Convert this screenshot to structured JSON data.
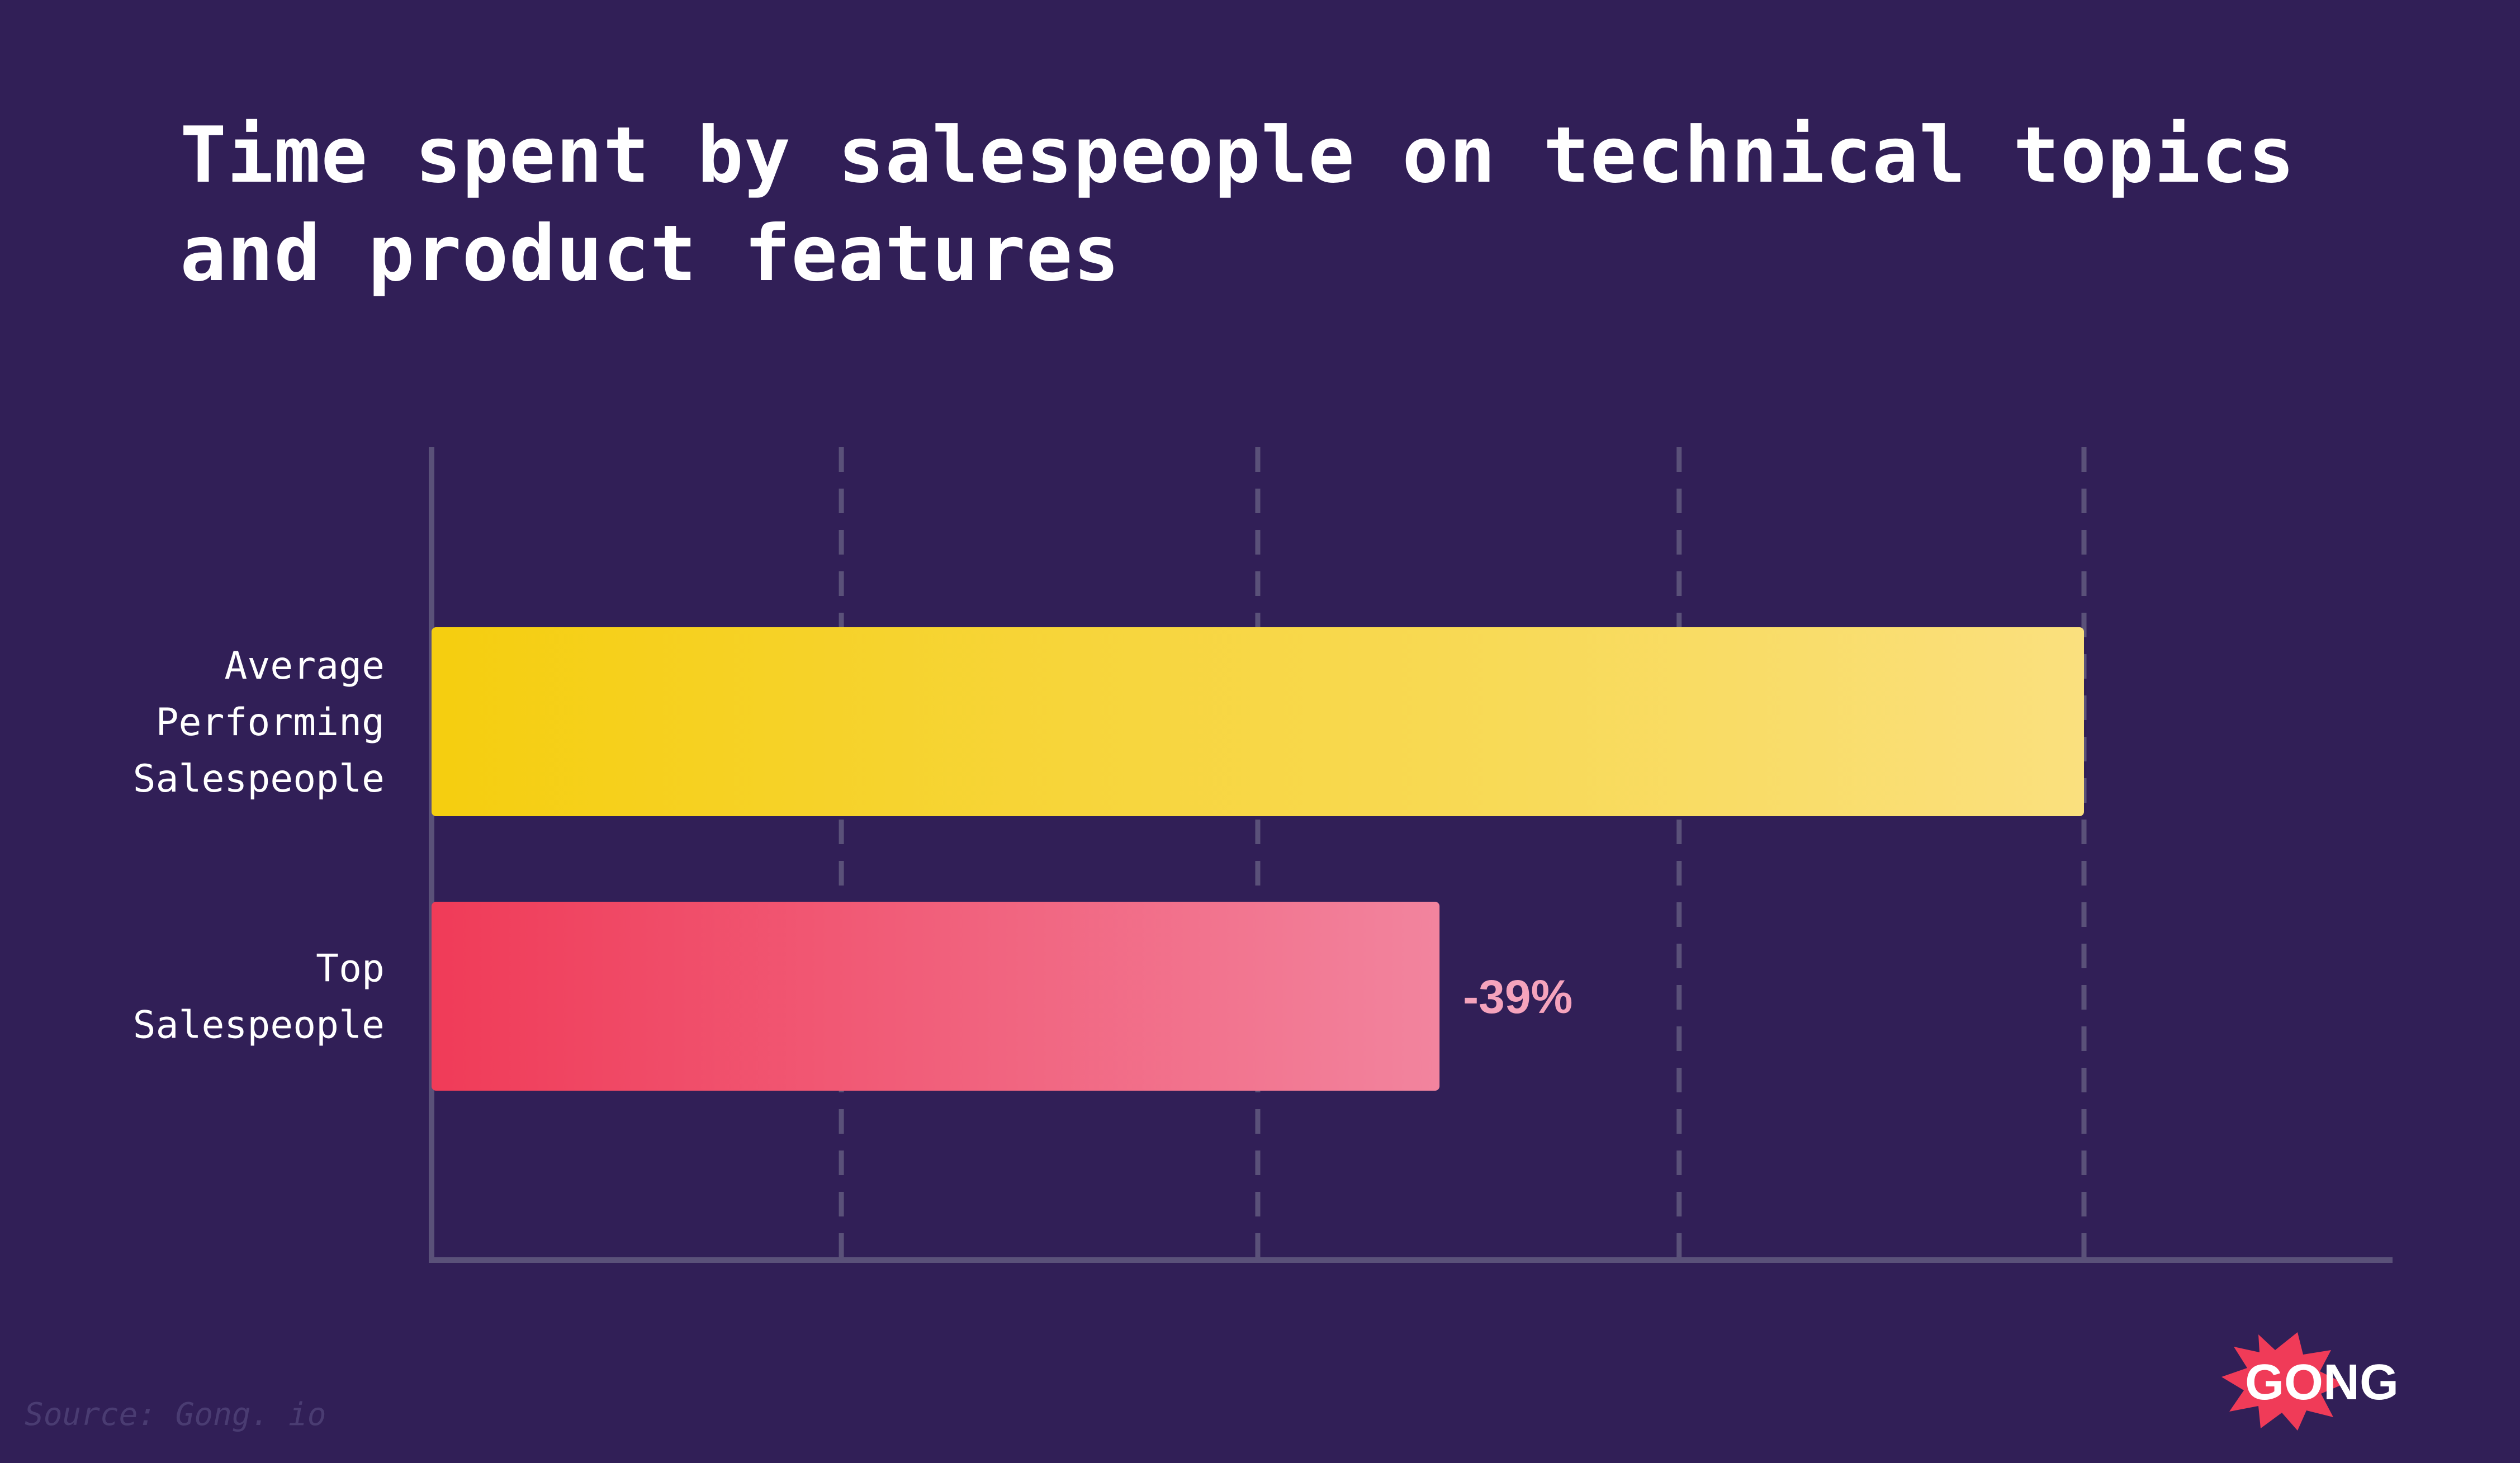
{
  "title": "Time spent by salespeople on technical topics and product features",
  "source": "Source: Gong. io",
  "brand": "GONG",
  "colors": {
    "background": "#311f57",
    "axis": "#5a5179",
    "grid": "#5a5179",
    "text": "#ffffff",
    "bar_average_start": "#f5ce0f",
    "bar_average_end": "#fae07e",
    "bar_top_start": "#f03b58",
    "bar_top_end": "#f2849e",
    "annotation": "#f5a3bc",
    "logo_burst": "#f03b58"
  },
  "chart_data": {
    "type": "bar",
    "orientation": "horizontal",
    "categories": [
      [
        "Average",
        "Performing",
        "Salespeople"
      ],
      [
        "Top",
        "Salespeople"
      ]
    ],
    "values": [
      100,
      61
    ],
    "annotations": [
      "",
      "-39%"
    ],
    "xlim": [
      0,
      119
    ],
    "grid_lines": [
      24.8,
      50,
      75.5,
      100
    ],
    "grid": true,
    "legend": "none"
  }
}
